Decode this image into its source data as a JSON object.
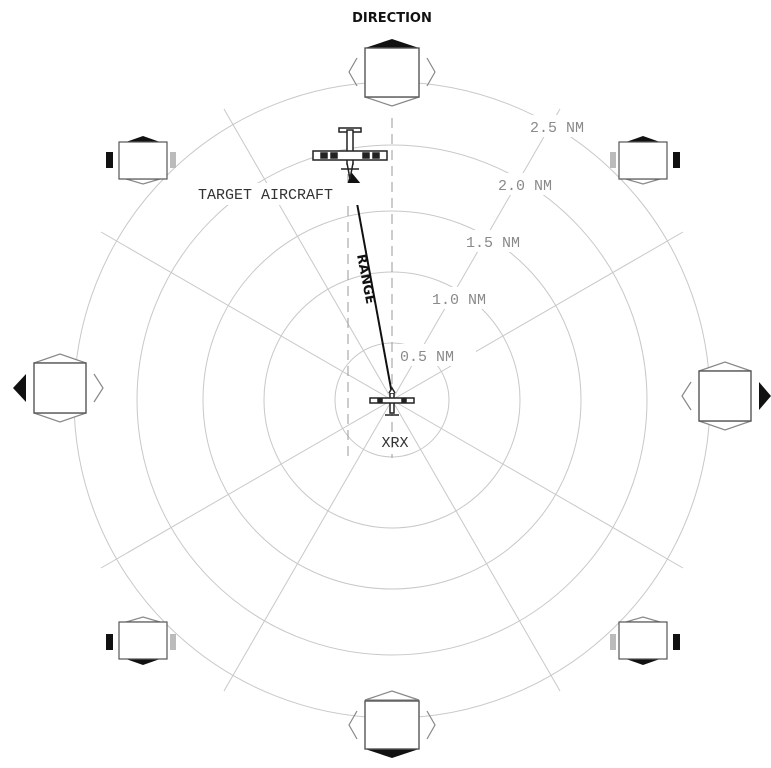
{
  "title": "DIRECTION",
  "ring_labels": [
    "0.5 NM",
    "1.0 NM",
    "1.5 NM",
    "2.0 NM",
    "2.5 NM"
  ],
  "target_label": "TARGET AIRCRAFT",
  "range_label": "RANGE",
  "own_label": "XRX"
}
